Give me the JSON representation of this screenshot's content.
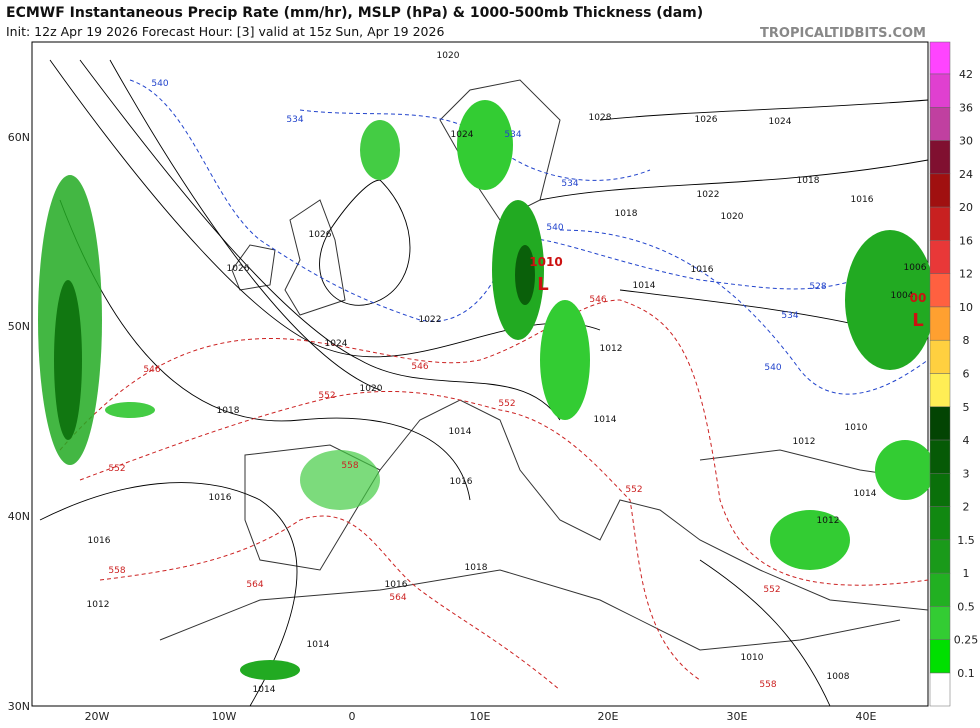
{
  "header": {
    "title": "ECMWF Instantaneous Precip Rate (mm/hr), MSLP (hPa) & 1000-500mb Thickness (dam)",
    "subtitle": "Init: 12z Apr 19 2026   Forecast Hour: [3]   valid at 15z Sun, Apr 19 2026",
    "credit": "TROPICALTIDBITS.COM"
  },
  "map": {
    "lat_labels": [
      "60N",
      "50N",
      "40N",
      "30N"
    ],
    "lon_labels": [
      "20W",
      "10W",
      "0",
      "10E",
      "20E",
      "30E",
      "40E"
    ],
    "isobar_labels": [
      "1020",
      "1024",
      "1028",
      "1026",
      "1024",
      "1022",
      "1018",
      "1016",
      "1020",
      "1018",
      "1016",
      "1014",
      "1026",
      "1026",
      "1022",
      "1024",
      "1020",
      "1018",
      "1016",
      "1016",
      "1012",
      "1018",
      "1016",
      "1014",
      "1014",
      "1012",
      "1012",
      "1010",
      "1010",
      "1008",
      "1006",
      "1004",
      "1014",
      "1012",
      "1014",
      "1014",
      "1016"
    ],
    "thickness_labels": [
      "540",
      "534",
      "534",
      "534",
      "540",
      "534",
      "528",
      "540",
      "546",
      "546",
      "546",
      "552",
      "552",
      "552",
      "558",
      "558",
      "564",
      "564",
      "552",
      "558",
      "552"
    ],
    "low_labels": [
      "1010",
      "L",
      "00",
      "L"
    ]
  },
  "colorbar": {
    "labels": [
      42,
      36,
      30,
      24,
      20,
      16,
      12,
      10,
      8,
      6,
      5,
      4,
      3,
      2,
      1.5,
      1,
      0.5,
      0.25,
      0.1
    ]
  }
}
